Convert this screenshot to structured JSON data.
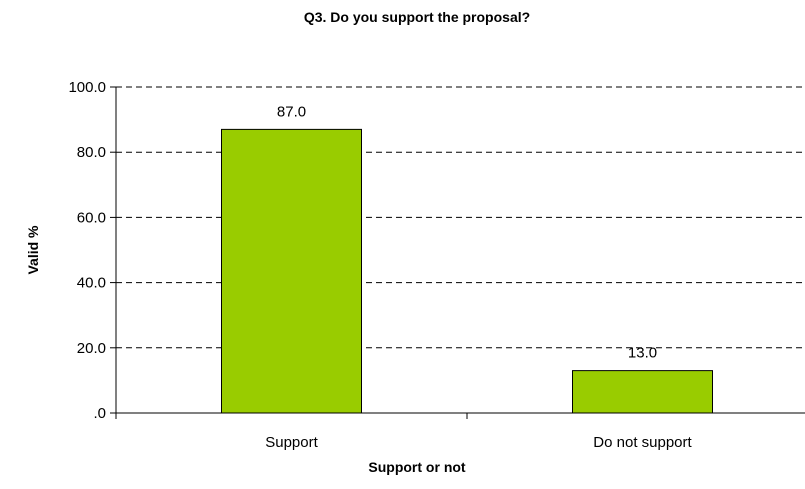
{
  "chart_data": {
    "type": "bar",
    "title": "Q3. Do you support the proposal?",
    "xlabel": "Support or not",
    "ylabel": "Valid %",
    "categories": [
      "Support",
      "Do not support"
    ],
    "values": [
      87.0,
      13.0
    ],
    "data_labels": [
      "87.0",
      "13.0"
    ],
    "ylim": [
      0,
      100
    ],
    "yticks": [
      ".0",
      "20.0",
      "40.0",
      "60.0",
      "80.0",
      "100.0"
    ],
    "ytick_values": [
      0,
      20,
      40,
      60,
      80,
      100
    ],
    "grid": true,
    "bar_color": "#99cc00"
  }
}
